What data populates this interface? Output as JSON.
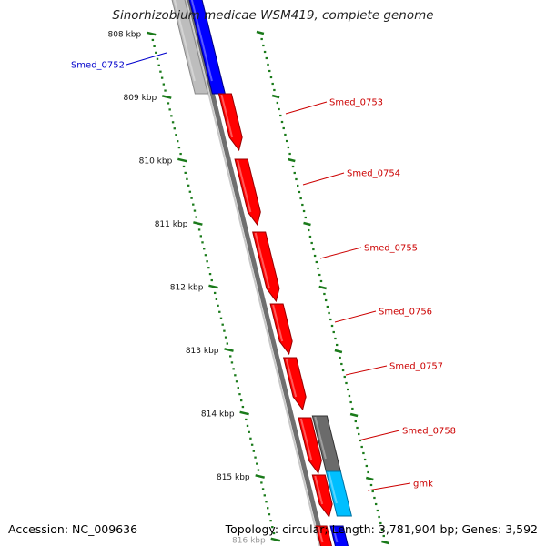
{
  "title": "Sinorhizobium medicae WSM419, complete genome",
  "footer": {
    "accession": "Accession: NC_009636",
    "summary": "Topology: circular; Length: 3,781,904 bp; Genes: 3,592"
  },
  "colors": {
    "forward_gene": "#ff0000",
    "reverse_gene": "#0000ff",
    "selected_gene": "#00bfff",
    "backbone": "#888888",
    "tick": "#1a7a1a",
    "gene_label": "#cc0000",
    "reverse_label": "#0000cc"
  },
  "ruler_ticks": [
    {
      "label": "808 kbp"
    },
    {
      "label": "809 kbp"
    },
    {
      "label": "810 kbp"
    },
    {
      "label": "811 kbp"
    },
    {
      "label": "812 kbp"
    },
    {
      "label": "813 kbp"
    },
    {
      "label": "814 kbp"
    },
    {
      "label": "815 kbp"
    },
    {
      "label": "816 kbp"
    }
  ],
  "genes": [
    {
      "name": "Smed_0752",
      "strand": "reverse"
    },
    {
      "name": "Smed_0753",
      "strand": "forward"
    },
    {
      "name": "Smed_0754",
      "strand": "forward"
    },
    {
      "name": "Smed_0755",
      "strand": "forward"
    },
    {
      "name": "Smed_0756",
      "strand": "forward"
    },
    {
      "name": "Smed_0757",
      "strand": "forward"
    },
    {
      "name": "Smed_0758",
      "strand": "forward"
    },
    {
      "name": "gmk",
      "strand": "forward"
    }
  ]
}
